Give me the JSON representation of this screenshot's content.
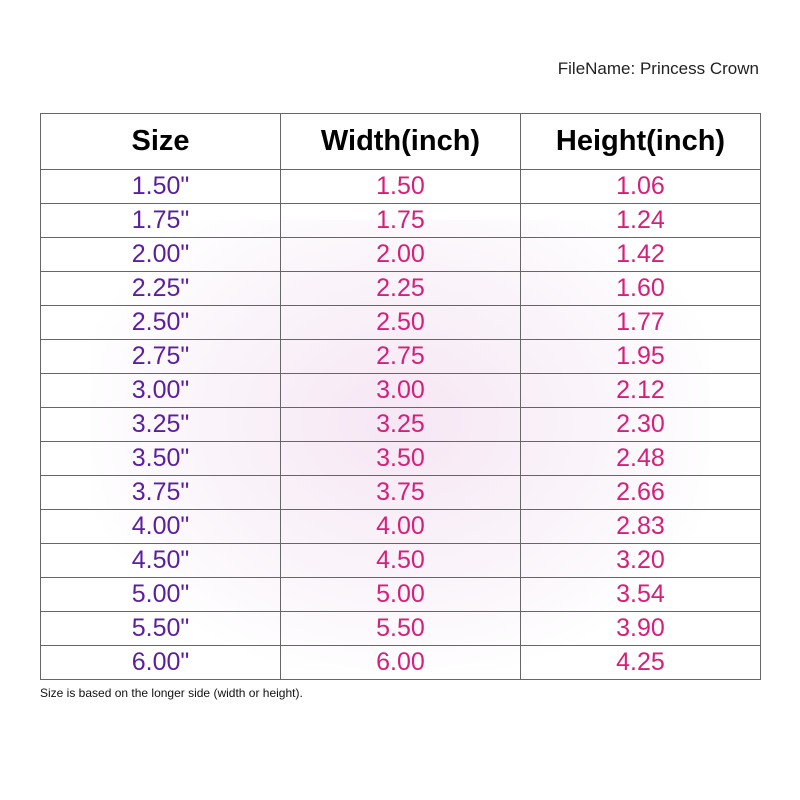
{
  "file_name": "FileName: Princess Crown",
  "headers": [
    "Size",
    "Width(inch)",
    "Height(inch)"
  ],
  "rows": [
    [
      "1.50\"",
      "1.50",
      "1.06"
    ],
    [
      "1.75\"",
      "1.75",
      "1.24"
    ],
    [
      "2.00\"",
      "2.00",
      "1.42"
    ],
    [
      "2.25\"",
      "2.25",
      "1.60"
    ],
    [
      "2.50\"",
      "2.50",
      "1.77"
    ],
    [
      "2.75\"",
      "2.75",
      "1.95"
    ],
    [
      "3.00\"",
      "3.00",
      "2.12"
    ],
    [
      "3.25\"",
      "3.25",
      "2.30"
    ],
    [
      "3.50\"",
      "3.50",
      "2.48"
    ],
    [
      "3.75\"",
      "3.75",
      "2.66"
    ],
    [
      "4.00\"",
      "4.00",
      "2.83"
    ],
    [
      "4.50\"",
      "4.50",
      "3.20"
    ],
    [
      "5.00\"",
      "5.00",
      "3.54"
    ],
    [
      "5.50\"",
      "5.50",
      "3.90"
    ],
    [
      "6.00\"",
      "6.00",
      "4.25"
    ]
  ],
  "note": "Size is based on the longer side (width or height).",
  "colors": {
    "size": "#5a1f9e",
    "dimension": "#d4207a"
  }
}
